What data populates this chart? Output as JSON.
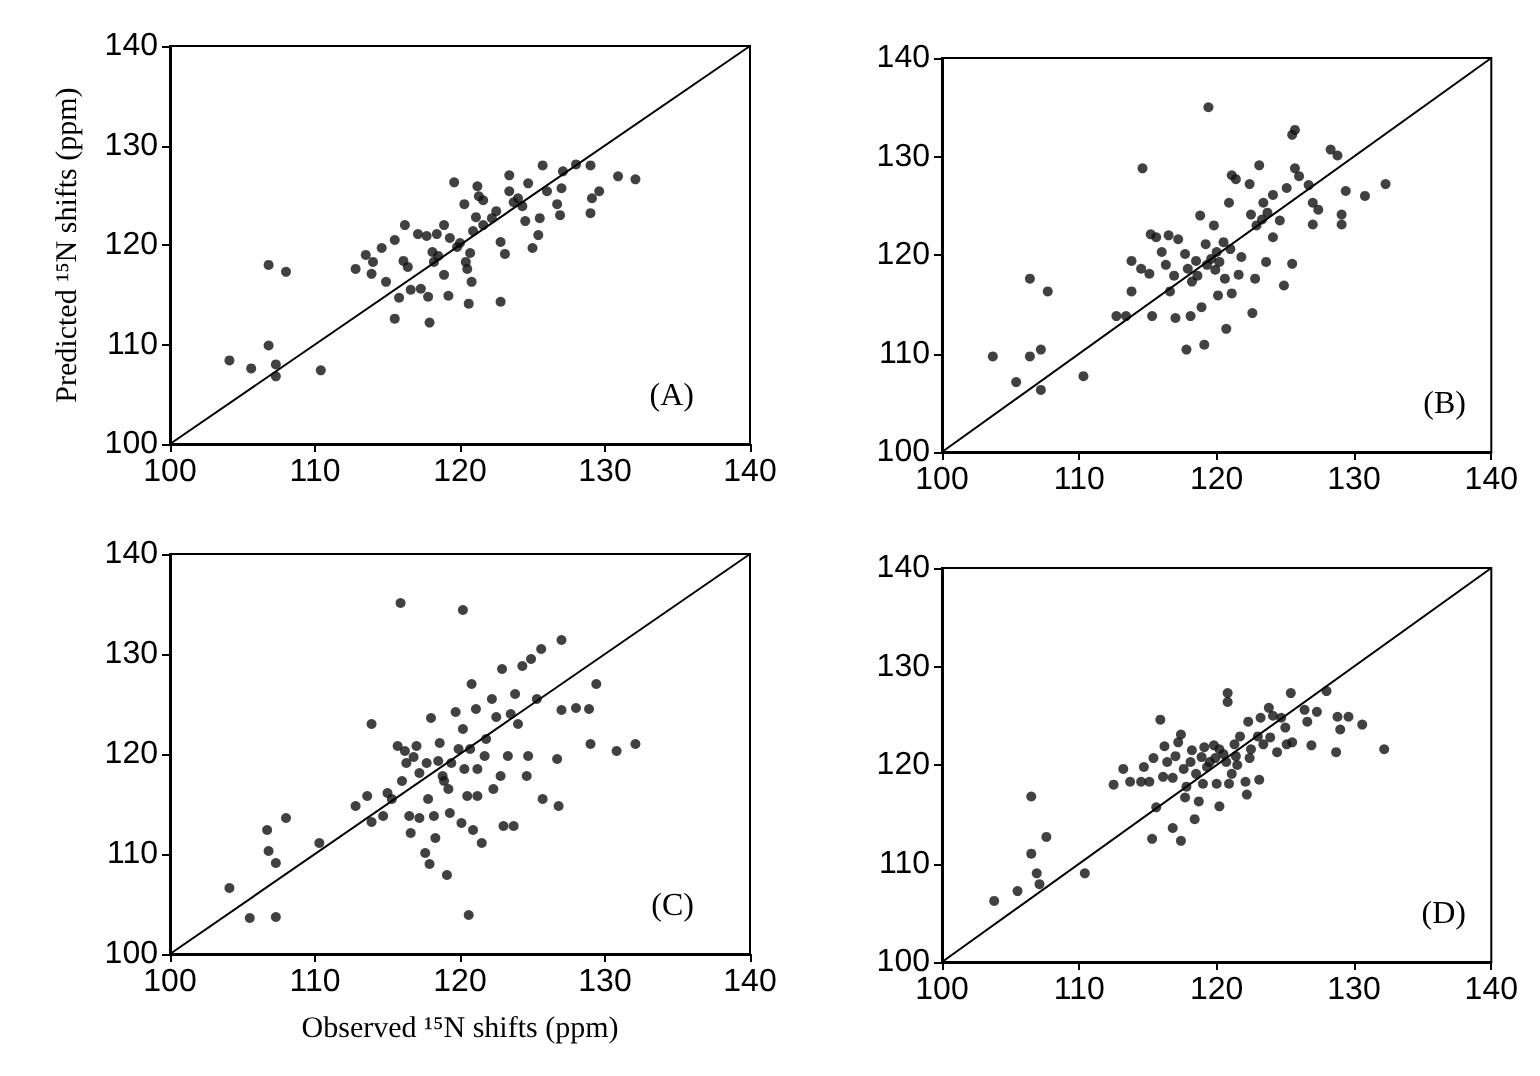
{
  "chart_data": [
    {
      "type": "scatter",
      "ylabel": "Predicted ¹⁵N shifts (ppm)",
      "annotations": [
        "(A)"
      ],
      "xlim": [
        100,
        140
      ],
      "xticks": [
        100,
        110,
        120,
        130,
        140
      ],
      "ylim": [
        100,
        140
      ],
      "yticks": [
        100,
        110,
        120,
        130,
        140
      ],
      "grid": false,
      "marker": "circle",
      "series": [
        {
          "color": "#111111",
          "x": [
            104.1,
            105.6,
            106.8,
            108.0,
            106.8,
            107.3,
            107.3,
            110.4,
            112.8,
            113.5,
            113.9,
            114.0,
            114.6,
            114.9,
            115.5,
            115.5,
            115.8,
            116.1,
            116.2,
            116.4,
            116.6,
            117.1,
            117.3,
            117.7,
            117.8,
            117.9,
            118.1,
            118.2,
            118.4,
            118.5,
            118.9,
            118.9,
            119.2,
            119.3,
            119.6,
            119.8,
            120.0,
            120.3,
            120.4,
            120.5,
            120.6,
            120.7,
            120.8,
            120.9,
            121.1,
            121.2,
            121.3,
            121.6,
            121.6,
            122.2,
            122.5,
            122.8,
            122.8,
            123.1,
            123.4,
            123.4,
            123.7,
            124.0,
            124.3,
            124.5,
            124.7,
            125.0,
            125.4,
            125.5,
            125.7,
            126.0,
            126.7,
            126.9,
            127.0,
            127.1,
            128.0,
            129.0,
            129.0,
            129.1,
            129.6,
            130.9,
            132.1
          ],
          "values": [
            108.4,
            107.6,
            118.0,
            117.3,
            109.9,
            108.0,
            106.8,
            107.4,
            117.6,
            119.0,
            117.1,
            118.3,
            119.7,
            116.3,
            120.5,
            112.6,
            114.7,
            118.4,
            122.0,
            117.8,
            115.5,
            121.1,
            115.6,
            120.9,
            114.8,
            112.2,
            119.3,
            118.3,
            121.1,
            118.9,
            122.0,
            117.0,
            114.9,
            120.7,
            126.3,
            119.8,
            120.2,
            124.1,
            118.3,
            117.6,
            114.1,
            119.2,
            116.3,
            121.4,
            122.8,
            125.9,
            124.9,
            122.0,
            124.5,
            122.7,
            123.4,
            120.3,
            114.3,
            119.1,
            125.4,
            127.0,
            124.3,
            124.7,
            123.9,
            122.4,
            126.2,
            119.7,
            121.0,
            122.7,
            128.0,
            125.4,
            124.1,
            123.0,
            125.7,
            127.4,
            128.1,
            128.0,
            123.2,
            124.7,
            125.4,
            126.9,
            126.6
          ]
        },
        {
          "type": "line",
          "color": "#000000",
          "marker": "none",
          "line_style": "solid",
          "x": [
            100,
            140
          ],
          "values": [
            100,
            140
          ]
        }
      ]
    },
    {
      "type": "scatter",
      "annotations": [
        "(B)"
      ],
      "xlim": [
        100,
        140
      ],
      "xticks": [
        100,
        110,
        120,
        130,
        140
      ],
      "ylim": [
        100,
        140
      ],
      "yticks": [
        100,
        110,
        120,
        130,
        140
      ],
      "grid": false,
      "marker": "circle",
      "series": [
        {
          "color": "#111111",
          "x": [
            103.7,
            105.4,
            106.4,
            106.4,
            107.2,
            107.2,
            107.7,
            110.3,
            112.7,
            113.4,
            113.8,
            113.8,
            114.6,
            114.5,
            115.1,
            115.2,
            115.3,
            115.6,
            116.0,
            116.3,
            116.5,
            116.6,
            116.9,
            117.0,
            117.2,
            117.7,
            117.8,
            117.9,
            118.1,
            118.2,
            118.5,
            118.6,
            118.8,
            118.9,
            119.1,
            119.2,
            119.3,
            119.4,
            119.6,
            119.8,
            119.9,
            120.0,
            120.1,
            120.2,
            120.5,
            120.6,
            120.7,
            120.9,
            121.0,
            121.1,
            121.1,
            121.4,
            121.6,
            121.8,
            122.4,
            122.5,
            122.6,
            122.8,
            122.9,
            123.1,
            123.3,
            123.4,
            123.6,
            123.7,
            124.1,
            124.1,
            124.6,
            124.9,
            125.1,
            125.5,
            125.5,
            125.7,
            125.7,
            126.0,
            126.7,
            127.0,
            127.0,
            127.4,
            128.3,
            128.8,
            129.1,
            129.1,
            129.4,
            130.8,
            132.3
          ],
          "values": [
            109.7,
            107.1,
            117.6,
            109.7,
            110.4,
            106.3,
            116.3,
            107.7,
            113.8,
            113.8,
            119.4,
            116.3,
            128.8,
            118.6,
            118.1,
            122.1,
            113.8,
            121.8,
            120.3,
            119.0,
            122.0,
            116.3,
            117.9,
            113.6,
            121.6,
            120.1,
            110.4,
            118.6,
            113.8,
            117.3,
            119.4,
            117.9,
            124.0,
            114.7,
            110.9,
            121.1,
            119.0,
            135.0,
            119.6,
            123.0,
            118.5,
            120.3,
            115.9,
            119.3,
            121.3,
            117.6,
            112.5,
            125.3,
            120.6,
            116.1,
            128.1,
            127.7,
            118.0,
            119.8,
            127.2,
            124.1,
            114.1,
            117.6,
            123.0,
            129.1,
            123.6,
            125.3,
            119.3,
            124.3,
            121.8,
            126.1,
            123.5,
            116.9,
            126.8,
            119.1,
            132.2,
            132.7,
            128.8,
            128.0,
            127.1,
            123.1,
            125.3,
            124.6,
            130.7,
            130.1,
            124.1,
            123.1,
            126.5,
            126.0,
            127.2
          ]
        },
        {
          "type": "line",
          "color": "#000000",
          "marker": "none",
          "line_style": "solid",
          "x": [
            100,
            140
          ],
          "values": [
            100,
            140
          ]
        }
      ]
    },
    {
      "type": "scatter",
      "xlabel": "Observed ¹⁵N shifts (ppm)",
      "annotations": [
        "(C)"
      ],
      "xlim": [
        100,
        140
      ],
      "xticks": [
        100,
        110,
        120,
        130,
        140
      ],
      "ylim": [
        100,
        140
      ],
      "yticks": [
        100,
        110,
        120,
        130,
        140
      ],
      "grid": false,
      "marker": "circle",
      "series": [
        {
          "color": "#111111",
          "x": [
            104.1,
            105.5,
            107.3,
            106.7,
            106.8,
            107.3,
            108.0,
            110.3,
            112.8,
            113.6,
            113.9,
            113.9,
            114.7,
            115.0,
            115.3,
            115.7,
            115.9,
            116.0,
            116.2,
            116.3,
            116.5,
            116.6,
            116.8,
            117.0,
            117.2,
            117.2,
            117.6,
            117.7,
            117.8,
            117.9,
            118.0,
            118.2,
            118.3,
            118.5,
            118.6,
            118.8,
            118.9,
            119.1,
            119.2,
            119.3,
            119.4,
            119.7,
            119.9,
            120.1,
            120.2,
            120.2,
            120.3,
            120.5,
            120.6,
            120.7,
            120.8,
            120.9,
            121.1,
            121.2,
            121.2,
            121.5,
            121.7,
            121.8,
            122.2,
            122.3,
            122.5,
            122.8,
            122.9,
            123.0,
            123.3,
            123.5,
            123.7,
            123.8,
            124.0,
            124.3,
            124.6,
            124.7,
            124.9,
            125.3,
            125.6,
            125.7,
            126.7,
            126.8,
            127.0,
            127.0,
            128.0,
            128.9,
            129.0,
            129.4,
            130.8,
            132.1
          ],
          "values": [
            106.6,
            103.6,
            103.7,
            112.4,
            110.3,
            109.1,
            113.6,
            111.1,
            114.8,
            115.8,
            123.0,
            113.2,
            113.8,
            116.1,
            115.5,
            120.8,
            135.1,
            117.3,
            120.3,
            119.1,
            113.8,
            112.1,
            119.7,
            120.8,
            118.1,
            113.6,
            110.1,
            119.1,
            115.5,
            109.0,
            123.6,
            113.8,
            111.6,
            119.3,
            121.1,
            117.8,
            117.3,
            107.9,
            116.5,
            114.1,
            119.1,
            124.2,
            120.5,
            113.1,
            134.4,
            122.5,
            118.5,
            115.8,
            103.9,
            120.5,
            127.0,
            112.4,
            124.5,
            118.5,
            115.8,
            111.1,
            119.8,
            121.5,
            125.5,
            116.5,
            123.7,
            117.8,
            128.5,
            112.8,
            119.8,
            124.0,
            112.8,
            126.0,
            123.0,
            128.8,
            117.8,
            119.8,
            129.5,
            125.5,
            130.5,
            115.5,
            119.5,
            114.8,
            131.4,
            124.4,
            124.6,
            124.5,
            121.0,
            127.0,
            120.3,
            121.0
          ]
        },
        {
          "type": "line",
          "color": "#000000",
          "marker": "none",
          "line_style": "solid",
          "x": [
            100,
            140
          ],
          "values": [
            100,
            140
          ]
        }
      ]
    },
    {
      "type": "scatter",
      "annotations": [
        "(D)"
      ],
      "xlim": [
        100,
        140
      ],
      "xticks": [
        100,
        110,
        120,
        130,
        140
      ],
      "ylim": [
        100,
        140
      ],
      "yticks": [
        100,
        110,
        120,
        130,
        140
      ],
      "grid": false,
      "marker": "circle",
      "series": [
        {
          "color": "#111111",
          "x": [
            103.8,
            105.5,
            106.5,
            106.5,
            106.9,
            107.1,
            107.6,
            110.4,
            112.5,
            113.2,
            113.7,
            114.5,
            114.7,
            115.1,
            115.3,
            115.4,
            115.6,
            115.9,
            116.1,
            116.2,
            116.4,
            116.8,
            116.8,
            117.0,
            117.2,
            117.4,
            117.4,
            117.6,
            117.7,
            117.8,
            118.1,
            118.2,
            118.4,
            118.5,
            118.7,
            118.9,
            119.0,
            119.1,
            119.3,
            119.5,
            119.8,
            119.9,
            120.0,
            120.2,
            120.2,
            120.5,
            120.7,
            120.8,
            120.8,
            120.9,
            121.1,
            121.3,
            121.4,
            121.5,
            121.7,
            122.1,
            122.2,
            122.3,
            122.4,
            122.5,
            123.0,
            123.1,
            123.2,
            123.4,
            123.8,
            123.9,
            124.1,
            124.4,
            124.7,
            125.0,
            125.1,
            125.4,
            125.5,
            126.4,
            126.6,
            126.9,
            127.3,
            128.0,
            128.7,
            128.8,
            129.0,
            129.6,
            130.6,
            132.2
          ],
          "values": [
            106.2,
            107.2,
            116.8,
            111.0,
            109.0,
            107.9,
            112.7,
            109.0,
            118.0,
            119.6,
            118.3,
            118.3,
            119.8,
            118.3,
            112.5,
            120.7,
            115.7,
            124.6,
            118.8,
            121.9,
            120.3,
            113.6,
            118.7,
            120.9,
            122.3,
            112.3,
            123.1,
            119.6,
            116.7,
            117.8,
            120.3,
            121.5,
            114.5,
            119.1,
            116.3,
            120.8,
            118.1,
            121.8,
            119.8,
            120.3,
            122.0,
            120.7,
            118.1,
            115.8,
            121.6,
            121.1,
            120.3,
            126.4,
            127.3,
            118.1,
            119.1,
            122.1,
            120.9,
            120.0,
            122.9,
            118.3,
            117.0,
            124.4,
            120.7,
            121.6,
            122.9,
            118.5,
            124.8,
            122.1,
            125.8,
            122.8,
            125.0,
            121.3,
            124.8,
            123.8,
            122.1,
            127.3,
            122.3,
            125.6,
            124.4,
            122.0,
            125.4,
            127.5,
            121.3,
            124.9,
            123.6,
            124.9,
            124.1,
            121.6
          ]
        },
        {
          "type": "line",
          "color": "#000000",
          "marker": "none",
          "line_style": "solid",
          "x": [
            100,
            140
          ],
          "values": [
            100,
            140
          ]
        }
      ]
    }
  ]
}
